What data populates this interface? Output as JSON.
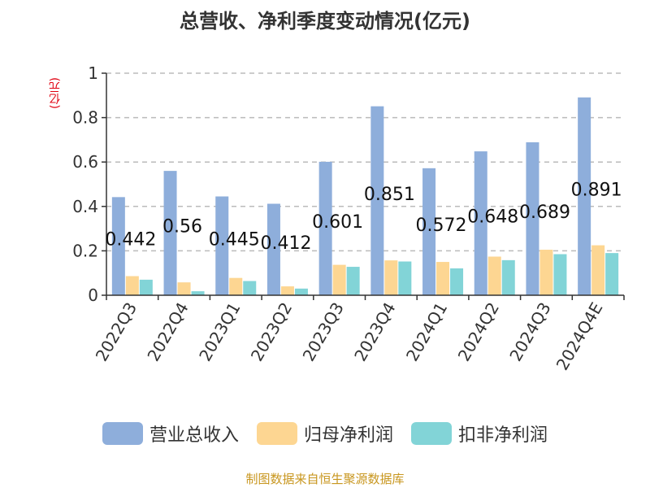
{
  "chart_data": {
    "type": "bar",
    "title": "总营收、净利季度变动情况(亿元)",
    "unit_label": "(亿元)",
    "categories": [
      "2022Q3",
      "2022Q4",
      "2023Q1",
      "2023Q2",
      "2023Q3",
      "2023Q4",
      "2024Q1",
      "2024Q2",
      "2024Q3",
      "2024Q4E"
    ],
    "series": [
      {
        "name": "营业总收入",
        "color": "#8eaedb",
        "values": [
          0.442,
          0.56,
          0.445,
          0.412,
          0.601,
          0.851,
          0.572,
          0.648,
          0.689,
          0.891
        ]
      },
      {
        "name": "归母净利润",
        "color": "#fdd692",
        "values": [
          0.086,
          0.058,
          0.078,
          0.04,
          0.137,
          0.157,
          0.15,
          0.174,
          0.205,
          0.225
        ]
      },
      {
        "name": "扣非净利润",
        "color": "#82d4d7",
        "values": [
          0.07,
          0.018,
          0.064,
          0.03,
          0.128,
          0.152,
          0.121,
          0.158,
          0.185,
          0.19
        ]
      }
    ],
    "data_labels": [
      "0.442",
      "0.56",
      "0.445",
      "0.412",
      "0.601",
      "0.851",
      "0.572",
      "0.648",
      "0.689",
      "0.891"
    ],
    "ylim": [
      0,
      1
    ],
    "y_ticks": [
      "0",
      "0.2",
      "0.4",
      "0.6",
      "0.8",
      "1"
    ],
    "grid": true,
    "legend_position": "bottom",
    "source_note": "制图数据来自恒生聚源数据库"
  }
}
